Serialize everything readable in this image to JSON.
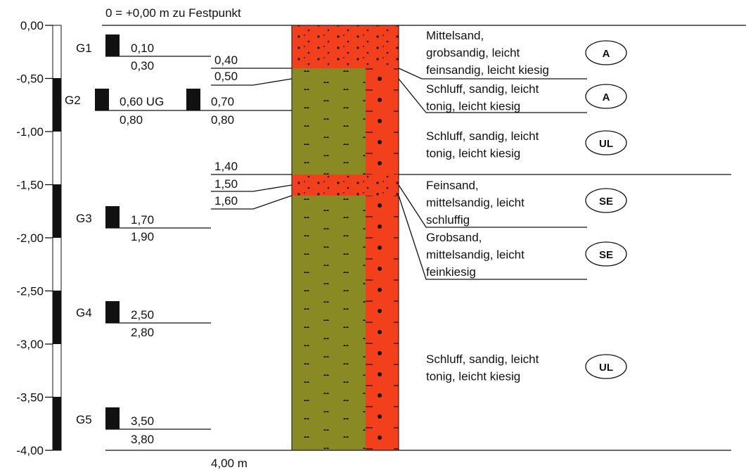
{
  "header": {
    "reference": "0 = +0,00 m zu Festpunkt"
  },
  "depth_axis": {
    "labels": [
      "0,00",
      "-0,50",
      "-1,00",
      "-1,50",
      "-2,00",
      "-2,50",
      "-3,00",
      "-3,50",
      "-4,00"
    ]
  },
  "samples": [
    {
      "name": "G1",
      "entries": [
        {
          "top": "0,10",
          "bottom": "0,30"
        }
      ]
    },
    {
      "name": "G2",
      "entries": [
        {
          "top": "0,60 UG",
          "bottom": "0,80"
        },
        {
          "top": "0,70",
          "bottom": "0,80"
        }
      ]
    },
    {
      "name": "G3",
      "entries": [
        {
          "top": "1,70",
          "bottom": "1,90"
        }
      ]
    },
    {
      "name": "G4",
      "entries": [
        {
          "top": "2,50",
          "bottom": "2,80"
        }
      ]
    },
    {
      "name": "G5",
      "entries": [
        {
          "top": "3,50",
          "bottom": "3,80"
        }
      ]
    }
  ],
  "boundaries": [
    "0,40",
    "0,50",
    "1,40",
    "1,50",
    "1,60"
  ],
  "layers": [
    {
      "description": [
        "Mittelsand,",
        "grobsandig, leicht",
        "feinsandig, leicht kiesig"
      ],
      "symbol": "A"
    },
    {
      "description": [
        "Schluff, sandig, leicht",
        "tonig, leicht kiesig"
      ],
      "symbol": "A"
    },
    {
      "description": [
        "Schluff, sandig, leicht",
        "tonig, leicht kiesig"
      ],
      "symbol": "UL"
    },
    {
      "description": [
        "Feinsand,",
        "mittelsandig, leicht",
        "schluffig"
      ],
      "symbol": "SE"
    },
    {
      "description": [
        "Grobsand,",
        "mittelsandig, leicht",
        "feinkiesig"
      ],
      "symbol": "SE"
    },
    {
      "description": [
        "Schluff, sandig, leicht",
        "tonig, leicht kiesig"
      ],
      "symbol": "UL"
    }
  ],
  "footer": {
    "total_depth": "4,00 m"
  }
}
